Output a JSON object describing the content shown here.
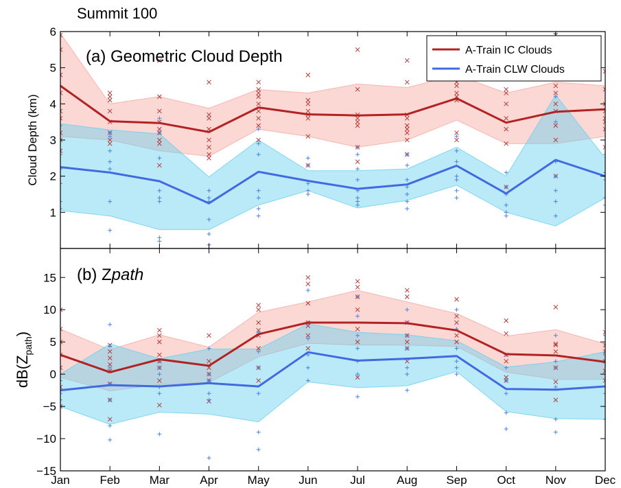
{
  "figure": {
    "suptitle": "Summit 100"
  },
  "colors": {
    "ic_line": "#b22222",
    "ic_band": "#f8a8a0",
    "ic_marker": "#b03030",
    "clw_line": "#4169e1",
    "clw_band": "#66d0f0",
    "clw_marker": "#4a7fe0"
  },
  "chart_data": [
    {
      "type": "line",
      "title": "(a) Geometric Cloud Depth",
      "ylabel": "Cloud Depth (km)",
      "ylim": [
        0,
        6
      ],
      "yticks": [
        1,
        2,
        3,
        4,
        5,
        6
      ],
      "categories": [
        "Jan",
        "Feb",
        "Mar",
        "Apr",
        "May",
        "Jun",
        "Jul",
        "Aug",
        "Sep",
        "Oct",
        "Nov",
        "Dec"
      ],
      "grid": false,
      "legend": "top-right",
      "series": [
        {
          "name": "A-Train IC Clouds",
          "values": [
            4.5,
            3.52,
            3.47,
            3.22,
            3.9,
            3.71,
            3.68,
            3.71,
            4.15,
            3.48,
            3.78,
            3.85
          ],
          "band_low": [
            3.1,
            3.0,
            2.7,
            2.55,
            3.3,
            3.1,
            2.8,
            3.0,
            3.55,
            2.9,
            2.9,
            3.1
          ],
          "band_high": [
            5.95,
            4.0,
            4.2,
            3.88,
            4.4,
            4.3,
            4.55,
            4.45,
            4.8,
            4.3,
            4.6,
            4.5
          ],
          "points": [
            [
              5.9,
              5.5,
              4.8,
              4.3,
              3.8,
              3.6,
              3.2,
              3.0,
              2.7
            ],
            [
              4.3,
              4.2,
              4.1,
              3.8,
              3.5,
              3.2,
              3.0,
              2.9
            ],
            [
              5.2,
              4.2,
              3.8,
              3.5,
              3.3,
              3.2,
              3.0,
              2.9,
              2.3
            ],
            [
              4.6,
              3.7,
              3.6,
              3.3,
              3.0,
              2.8,
              2.6,
              2.5
            ],
            [
              4.6,
              4.4,
              4.3,
              4.2,
              4.0,
              3.8,
              3.6,
              3.4,
              3.0
            ],
            [
              4.8,
              4.1,
              4.0,
              3.8,
              3.7,
              3.6,
              3.1,
              2.3
            ],
            [
              5.5,
              4.4,
              3.7,
              3.6,
              3.5,
              3.4,
              2.8,
              2.4
            ],
            [
              5.2,
              4.6,
              3.7,
              3.6,
              3.4,
              3.3,
              3.2,
              3.0,
              2.6
            ],
            [
              4.6,
              4.5,
              4.3,
              4.2,
              4.1,
              3.2,
              3.0
            ],
            [
              4.4,
              4.3,
              4.0,
              3.6,
              3.3,
              2.9,
              1.7
            ],
            [
              5.9,
              4.5,
              4.3,
              4.0,
              3.8,
              3.4,
              3.0,
              2.0
            ],
            [
              4.9,
              4.4,
              4.0,
              3.8,
              3.6,
              3.5,
              3.3,
              2.8
            ]
          ]
        },
        {
          "name": "A-Train CLW Clouds",
          "values": [
            2.25,
            2.1,
            1.86,
            1.25,
            2.12,
            1.87,
            1.65,
            1.77,
            2.29,
            1.52,
            2.45,
            2.0
          ],
          "band_low": [
            1.05,
            0.9,
            0.52,
            0.52,
            1.2,
            1.6,
            1.12,
            1.33,
            1.75,
            1.0,
            0.62,
            1.4
          ],
          "band_high": [
            3.45,
            3.28,
            3.17,
            1.98,
            3.0,
            2.15,
            2.15,
            2.2,
            2.8,
            2.0,
            4.25,
            2.5
          ],
          "points": [
            [
              3.4,
              3.0,
              2.6,
              2.2,
              1.8,
              1.3,
              1.1
            ],
            [
              3.2,
              3.1,
              2.7,
              2.4,
              2.2,
              1.3,
              0.5
            ],
            [
              3.6,
              3.2,
              2.5,
              1.6,
              1.4,
              1.3,
              0.3,
              0.2
            ],
            [
              1.6,
              1.4,
              1.3,
              0.8,
              0.4,
              0.1
            ],
            [
              3.3,
              2.9,
              2.6,
              1.6,
              1.4,
              1.1,
              0.9
            ],
            [
              2.5,
              2.3,
              1.8,
              1.6,
              1.5
            ],
            [
              2.8,
              2.6,
              2.2,
              1.9,
              1.6,
              1.4,
              1.3,
              1.2
            ],
            [
              2.6,
              2.3,
              1.9,
              1.7,
              1.5,
              1.3,
              1.1
            ],
            [
              3.1,
              2.7,
              2.4,
              2.0,
              1.9,
              1.6,
              1.4
            ],
            [
              2.1,
              1.7,
              1.5,
              1.2,
              1.0,
              0.9
            ],
            [
              5.95,
              4.2,
              3.5,
              2.4,
              2.0,
              1.6,
              1.3,
              0.9
            ],
            [
              3.0,
              2.6,
              2.1,
              1.9,
              1.4,
              1.2
            ]
          ]
        }
      ]
    },
    {
      "type": "line",
      "title_prefix": "(b) Z",
      "title_italic": "path",
      "ylabel_main": "dB(Z",
      "ylabel_sub": "path",
      "ylabel_close": ")",
      "ylim": [
        -15,
        19.5
      ],
      "yticks": [
        -15,
        -10,
        -5,
        0,
        5,
        10,
        15
      ],
      "categories": [
        "Jan",
        "Feb",
        "Mar",
        "Apr",
        "May",
        "Jun",
        "Jul",
        "Aug",
        "Sep",
        "Oct",
        "Nov",
        "Dec"
      ],
      "grid": false,
      "series": [
        {
          "name": "A-Train IC Clouds",
          "values": [
            3.0,
            0.3,
            2.3,
            1.3,
            6.2,
            8.0,
            8.0,
            7.9,
            6.8,
            3.1,
            2.9,
            1.9
          ],
          "band_low": [
            -0.5,
            -2.6,
            -1.6,
            -1.3,
            2.7,
            4.8,
            4.5,
            4.5,
            4.3,
            0.3,
            -0.8,
            -0.8
          ],
          "band_high": [
            7.0,
            3.8,
            6.1,
            4.2,
            9.6,
            11.2,
            13.0,
            11.2,
            9.4,
            5.9,
            6.9,
            4.7
          ],
          "points": [
            [
              10.0,
              7.0,
              5.0,
              3.0,
              1.0,
              -2.0,
              -5.0
            ],
            [
              4.5,
              3.5,
              2.5,
              1.5,
              0.5,
              -1.5,
              -4.0,
              -7.0
            ],
            [
              6.8,
              6.0,
              5.0,
              3.0,
              2.0,
              1.0,
              -1.0,
              -4.8
            ],
            [
              6.0,
              2.0,
              1.0,
              0.0,
              -1.0,
              -4.2
            ],
            [
              10.7,
              10.0,
              8.0,
              6.8,
              6.0,
              4.0,
              1.0,
              -1.0
            ],
            [
              15.0,
              14.0,
              11.0,
              8.0,
              7.5,
              6.0,
              4.0
            ],
            [
              14.4,
              13.5,
              12.0,
              10.0,
              7.0,
              5.0,
              -0.5
            ],
            [
              13.0,
              12.0,
              8.0,
              6.0,
              5.0,
              4.0,
              2.0
            ],
            [
              11.6,
              9.0,
              8.0,
              6.0,
              5.0
            ],
            [
              8.3,
              6.3,
              3.0,
              2.0,
              -0.5,
              -1.0
            ],
            [
              10.4,
              4.7,
              4.5,
              3.5,
              1.0,
              -1.2,
              -4.0
            ],
            [
              6.5,
              4.5,
              3.5,
              2.0,
              0.5,
              -1.0
            ]
          ]
        },
        {
          "name": "A-Train CLW Clouds",
          "values": [
            -2.5,
            -1.7,
            -1.9,
            -1.4,
            -1.9,
            3.4,
            2.1,
            2.4,
            2.8,
            -2.3,
            -2.4,
            -1.9
          ],
          "band_low": [
            -5.0,
            -7.8,
            -5.9,
            -6.2,
            -7.4,
            -1.2,
            -2.1,
            -1.8,
            0.4,
            -5.8,
            -6.9,
            -7.0
          ],
          "band_high": [
            0.0,
            4.7,
            2.4,
            3.9,
            3.9,
            7.8,
            6.5,
            6.1,
            5.2,
            1.1,
            1.9,
            3.5
          ],
          "points": [
            [
              -1.0,
              -3.0,
              -4.0,
              -5.0
            ],
            [
              7.7,
              4.3,
              1.0,
              -1.5,
              -4.0,
              -8.0,
              -10.2
            ],
            [
              2.0,
              1.0,
              0.0,
              -2.0,
              -3.0,
              -9.3
            ],
            [
              4.0,
              0.0,
              -1.0,
              -3.0,
              -4.0,
              -13.0
            ],
            [
              6.5,
              3.5,
              1.0,
              -3.0,
              -9.0,
              -11.7
            ],
            [
              13.0,
              8.0,
              5.5,
              3.0,
              1.0,
              -1.0
            ],
            [
              12.0,
              9.0,
              6.0,
              4.0,
              2.0,
              0.0,
              -3.5
            ],
            [
              10.0,
              8.0,
              6.0,
              4.0,
              1.0,
              0.0,
              -2.5
            ],
            [
              10.0,
              7.0,
              4.0,
              2.0,
              1.0,
              0.0
            ],
            [
              3.0,
              1.0,
              -1.0,
              -3.0,
              -6.0,
              -8.5
            ],
            [
              6.0,
              2.0,
              1.0,
              -2.0,
              -7.0,
              -9.0
            ],
            [
              6.0,
              3.0,
              0.0,
              -3.0,
              -5.0,
              -7.0
            ]
          ]
        }
      ]
    }
  ]
}
